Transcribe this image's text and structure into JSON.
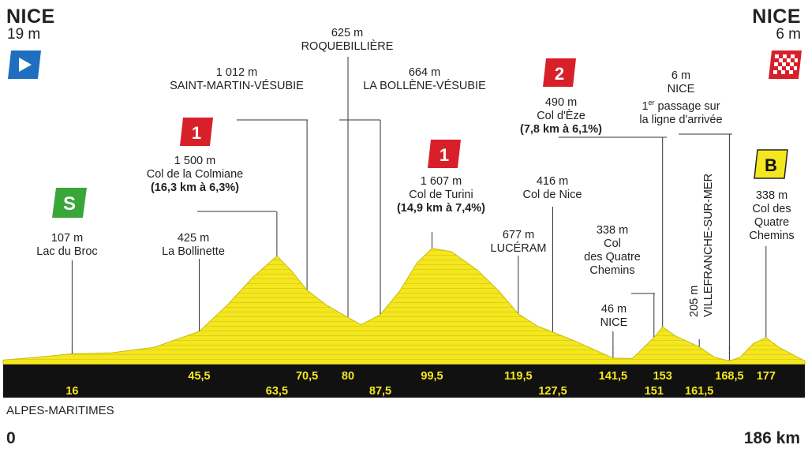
{
  "start": {
    "name": "NICE",
    "altitude": "19 m"
  },
  "finish": {
    "name": "NICE",
    "altitude": "6 m"
  },
  "region": "ALPES-MARITIMES",
  "axis": {
    "start_km": "0",
    "end_km": "186 km"
  },
  "colors": {
    "profile_fill": "#f5e71f",
    "baseline": "#111111",
    "start_flag": "#1f6fc0",
    "sprint": "#3aa63a",
    "cat1": "#d8202a",
    "bonus": "#f5e71f"
  },
  "chart_data": {
    "type": "area",
    "xlim": [
      0,
      186
    ],
    "ylim": [
      0,
      1650
    ],
    "profile": [
      [
        0,
        19
      ],
      [
        8,
        60
      ],
      [
        16,
        107
      ],
      [
        25,
        120
      ],
      [
        35,
        200
      ],
      [
        45.5,
        425
      ],
      [
        52,
        800
      ],
      [
        58,
        1200
      ],
      [
        63.5,
        1500
      ],
      [
        67,
        1280
      ],
      [
        70.5,
        1012
      ],
      [
        75,
        800
      ],
      [
        80,
        625
      ],
      [
        83,
        520
      ],
      [
        87.5,
        664
      ],
      [
        92,
        1000
      ],
      [
        96,
        1400
      ],
      [
        99.5,
        1607
      ],
      [
        104,
        1560
      ],
      [
        110,
        1300
      ],
      [
        115,
        1000
      ],
      [
        119.5,
        677
      ],
      [
        124,
        500
      ],
      [
        127.5,
        416
      ],
      [
        133,
        280
      ],
      [
        141.5,
        46
      ],
      [
        146,
        40
      ],
      [
        151,
        338
      ],
      [
        153,
        490
      ],
      [
        156,
        360
      ],
      [
        161.5,
        205
      ],
      [
        165,
        60
      ],
      [
        168.5,
        6
      ],
      [
        171,
        60
      ],
      [
        174,
        250
      ],
      [
        177,
        338
      ],
      [
        180,
        200
      ],
      [
        186,
        6
      ]
    ],
    "km_markers": [
      {
        "km": "16",
        "row": 2
      },
      {
        "km": "45,5",
        "row": 1
      },
      {
        "km": "63,5",
        "row": 2
      },
      {
        "km": "70,5",
        "row": 1
      },
      {
        "km": "80",
        "row": 1
      },
      {
        "km": "87,5",
        "row": 2
      },
      {
        "km": "99,5",
        "row": 1
      },
      {
        "km": "119,5",
        "row": 1
      },
      {
        "km": "127,5",
        "row": 2
      },
      {
        "km": "141,5",
        "row": 1
      },
      {
        "km": "151",
        "row": 2
      },
      {
        "km": "153",
        "row": 1
      },
      {
        "km": "161,5",
        "row": 2
      },
      {
        "km": "168,5",
        "row": 1
      },
      {
        "km": "177",
        "row": 1
      }
    ]
  },
  "waypoints": {
    "lac_du_broc": {
      "alt": "107 m",
      "name": "Lac du Broc"
    },
    "bollinette": {
      "alt": "425 m",
      "name": "La Bollinette"
    },
    "colmiane": {
      "alt": "1 500 m",
      "name": "Col de la Colmiane",
      "climb": "(16,3 km à 6,3%)",
      "cat": "1"
    },
    "st_martin": {
      "alt": "1 012 m",
      "name": "SAINT-MARTIN-VÉSUBIE"
    },
    "roquebilliere": {
      "alt": "625 m",
      "name": "ROQUEBILLIÈRE"
    },
    "bollene": {
      "alt": "664 m",
      "name": "LA BOLLÈNE-VÉSUBIE"
    },
    "turini": {
      "alt": "1 607 m",
      "name": "Col de Turini",
      "climb": "(14,9 km à 7,4%)",
      "cat": "1"
    },
    "luceram": {
      "alt": "677 m",
      "name": "LUCÉRAM"
    },
    "col_de_nice": {
      "alt": "416 m",
      "name": "Col de Nice"
    },
    "nice_46": {
      "alt": "46 m",
      "name": "NICE"
    },
    "quatre_chemins_1": {
      "alt": "338 m",
      "name1": "Col",
      "name2": "des Quatre",
      "name3": "Chemins"
    },
    "eze": {
      "alt": "490 m",
      "name": "Col d'Èze",
      "climb": "(7,8 km à 6,1%)",
      "cat": "2"
    },
    "villefranche": {
      "alt": "205 m",
      "name": "VILLEFRANCHE-SUR-MER"
    },
    "nice_pass": {
      "alt": "6 m",
      "name": "NICE",
      "line1_sup": "er",
      "line1_rest": " passage sur",
      "line1_num": "1",
      "line2": "la ligne d'arrivée"
    },
    "quatre_chemins_2": {
      "alt": "338 m",
      "name1": "Col des",
      "name2": "Quatre",
      "name3": "Chemins",
      "bonus": "B"
    },
    "sprint": {
      "label": "S"
    }
  }
}
